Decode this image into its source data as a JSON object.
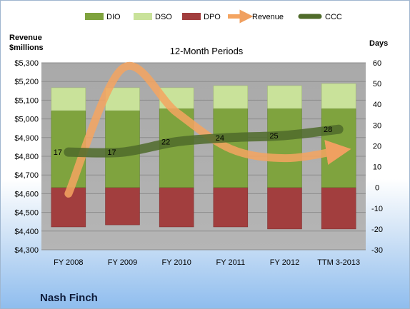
{
  "chart_data": {
    "type": "bar",
    "title": "12-Month Periods",
    "company": "Nash Finch",
    "categories": [
      "FY 2008",
      "FY 2009",
      "FY 2010",
      "FY 2011",
      "FY 2012",
      "TTM 3-2013"
    ],
    "left_axis": {
      "title_line1": "Revenue",
      "title_line2": "$millions",
      "min": 4300,
      "max": 5300,
      "step": 100,
      "ticks": [
        "$4,300",
        "$4,400",
        "$4,500",
        "$4,600",
        "$4,700",
        "$4,800",
        "$4,900",
        "$5,000",
        "$5,100",
        "$5,200",
        "$5,300"
      ]
    },
    "right_axis": {
      "title": "Days",
      "min": -30,
      "max": 60,
      "step": 10,
      "ticks": [
        "-30",
        "-20",
        "-10",
        "0",
        "10",
        "20",
        "30",
        "40",
        "50",
        "60"
      ]
    },
    "grid": true,
    "legend_position": "top",
    "series": [
      {
        "name": "DIO",
        "axis": "right",
        "kind": "stacked-bar",
        "color": "#7fa33e",
        "values": [
          37,
          37,
          38,
          38,
          38,
          38
        ]
      },
      {
        "name": "DSO",
        "axis": "right",
        "kind": "stacked-bar",
        "color": "#c9e29a",
        "values": [
          11,
          11,
          10,
          11,
          11,
          12
        ]
      },
      {
        "name": "DPO",
        "axis": "right",
        "kind": "stacked-bar-negative",
        "color": "#a23e3e",
        "values": [
          -19,
          -18,
          -19,
          -19,
          -20,
          -20
        ]
      },
      {
        "name": "Revenue",
        "axis": "left",
        "kind": "line",
        "color": "#f4a460",
        "values": [
          4600,
          5270,
          5035,
          4840,
          4790,
          4830
        ]
      },
      {
        "name": "CCC",
        "axis": "right",
        "kind": "line",
        "color": "#4f6b2a",
        "values": [
          17,
          17,
          22,
          24,
          25,
          28
        ],
        "labels": [
          "17",
          "17",
          "22",
          "24",
          "25",
          "28"
        ]
      }
    ]
  }
}
